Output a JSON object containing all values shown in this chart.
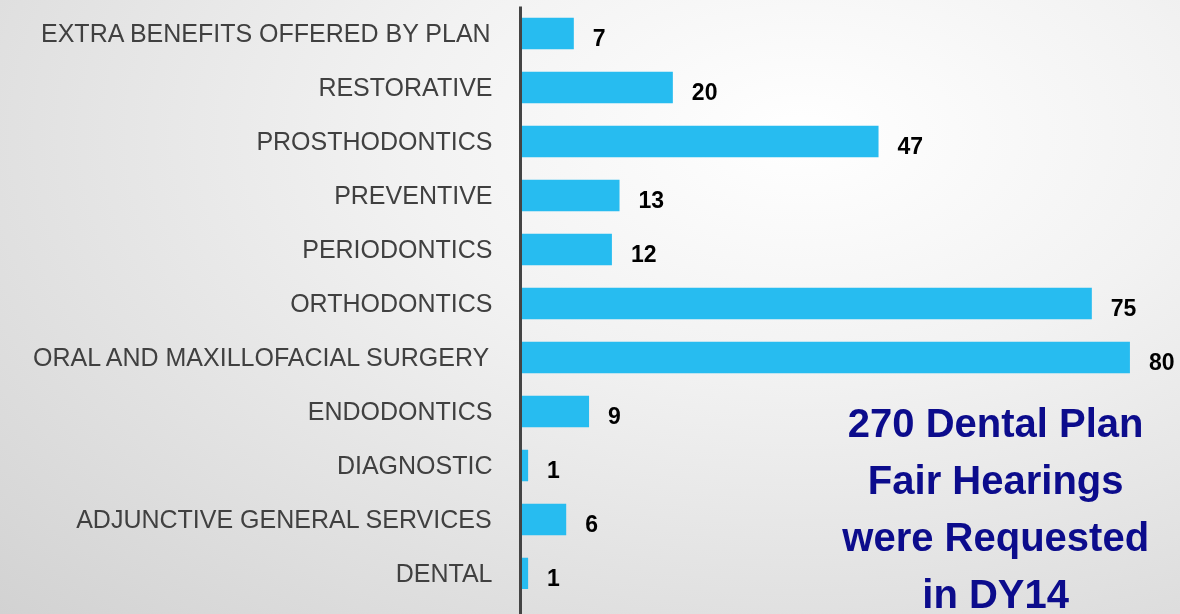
{
  "chart_data": {
    "type": "bar",
    "orientation": "horizontal",
    "categories": [
      "EXTRA BENEFITS OFFERED BY PLAN",
      "RESTORATIVE",
      "PROSTHODONTICS",
      "PREVENTIVE",
      "PERIODONTICS",
      "ORTHODONTICS",
      "ORAL AND MAXILLOFACIAL SURGERY",
      "ENDODONTICS",
      "DIAGNOSTIC",
      "ADJUNCTIVE GENERAL SERVICES",
      "DENTAL"
    ],
    "values": [
      7,
      20,
      47,
      13,
      12,
      75,
      80,
      9,
      1,
      6,
      1
    ],
    "color": "#27bcf0",
    "data_labels": true,
    "tick_labels": "y",
    "annotations": [
      "270 Dental Plan Fair Hearings were Requested in DY14"
    ]
  }
}
